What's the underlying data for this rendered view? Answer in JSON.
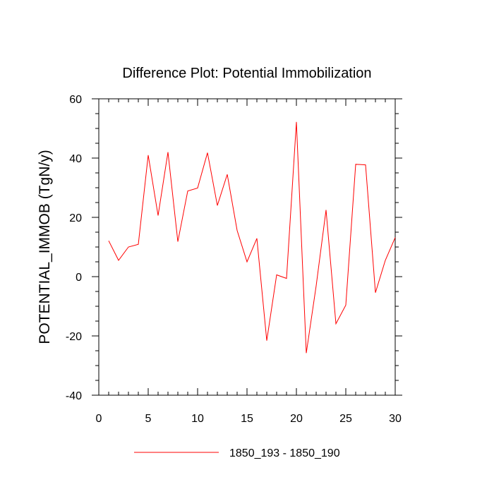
{
  "chart_data": {
    "type": "line",
    "title": "Difference Plot: Potential Immobilization",
    "xlabel": "",
    "ylabel": "POTENTIAL_IMMOB  (TgN/y)",
    "xlim": [
      0,
      30
    ],
    "ylim": [
      -40,
      60
    ],
    "x_ticks": [
      0,
      5,
      10,
      15,
      20,
      25,
      30
    ],
    "y_ticks": [
      -40,
      -20,
      0,
      20,
      40,
      60
    ],
    "grid": false,
    "legend_position": "bottom",
    "series": [
      {
        "name": "1850_193 - 1850_190",
        "color": "#ff0000",
        "x": [
          1,
          2,
          3,
          4,
          5,
          6,
          7,
          8,
          9,
          10,
          11,
          12,
          13,
          14,
          15,
          16,
          17,
          18,
          19,
          20,
          21,
          22,
          23,
          24,
          25,
          26,
          27,
          28,
          29,
          30
        ],
        "values": [
          12.1,
          5.5,
          10.0,
          10.9,
          41.0,
          20.6,
          42.0,
          11.8,
          28.9,
          29.9,
          41.8,
          24.0,
          34.5,
          15.6,
          5.0,
          12.9,
          -21.6,
          0.6,
          -0.6,
          52.2,
          -25.8,
          -3.1,
          22.5,
          -15.9,
          -9.6,
          37.9,
          37.7,
          -5.4,
          5.5,
          13.2
        ]
      }
    ]
  }
}
